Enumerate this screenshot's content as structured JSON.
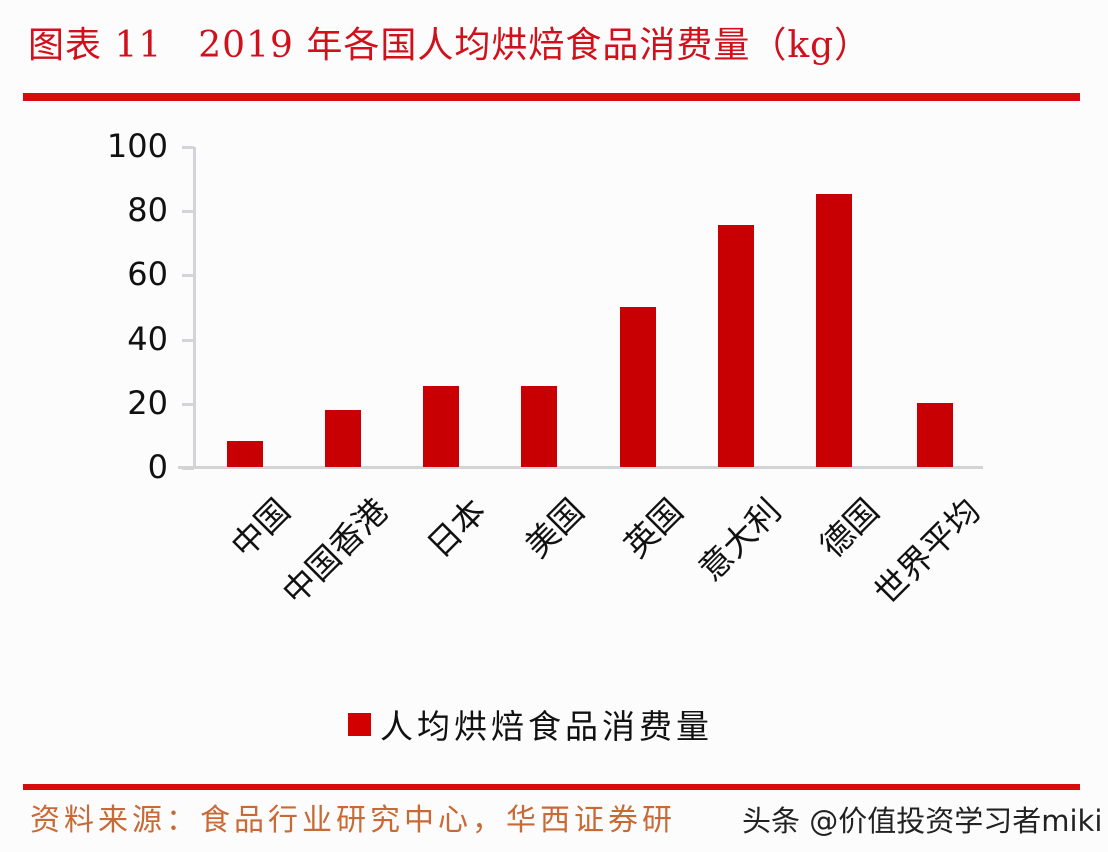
{
  "header": {
    "figure_no": "图表 11",
    "title": "2019 年各国人均烘焙食品消费量（kg）"
  },
  "colors": {
    "accent_red": "#d80c10",
    "bar_red": "#c80004",
    "axis_gray": "#d3d3d8",
    "source_orange": "#c86a35"
  },
  "chart_data": {
    "type": "bar",
    "title": "2019 年各国人均烘焙食品消费量（kg）",
    "xlabel": "",
    "ylabel": "",
    "categories": [
      "中国",
      "中国香港",
      "日本",
      "美国",
      "英国",
      "意大利",
      "德国",
      "世界平均"
    ],
    "series": [
      {
        "name": "人均烘焙食品消费量",
        "values": [
          8.4,
          18.2,
          25.5,
          25.5,
          50.2,
          75.6,
          85.4,
          20.3
        ]
      }
    ],
    "ylim": [
      0,
      100
    ],
    "yticks": [
      "0",
      "20",
      "40",
      "60",
      "80",
      "100"
    ],
    "grid": false,
    "legend_position": "bottom"
  },
  "legend": {
    "label": "人均烘焙食品消费量"
  },
  "footer": {
    "source": "资料来源：食品行业研究中心，华西证券研",
    "watermark": "头条 @价值投资学习者miki"
  }
}
